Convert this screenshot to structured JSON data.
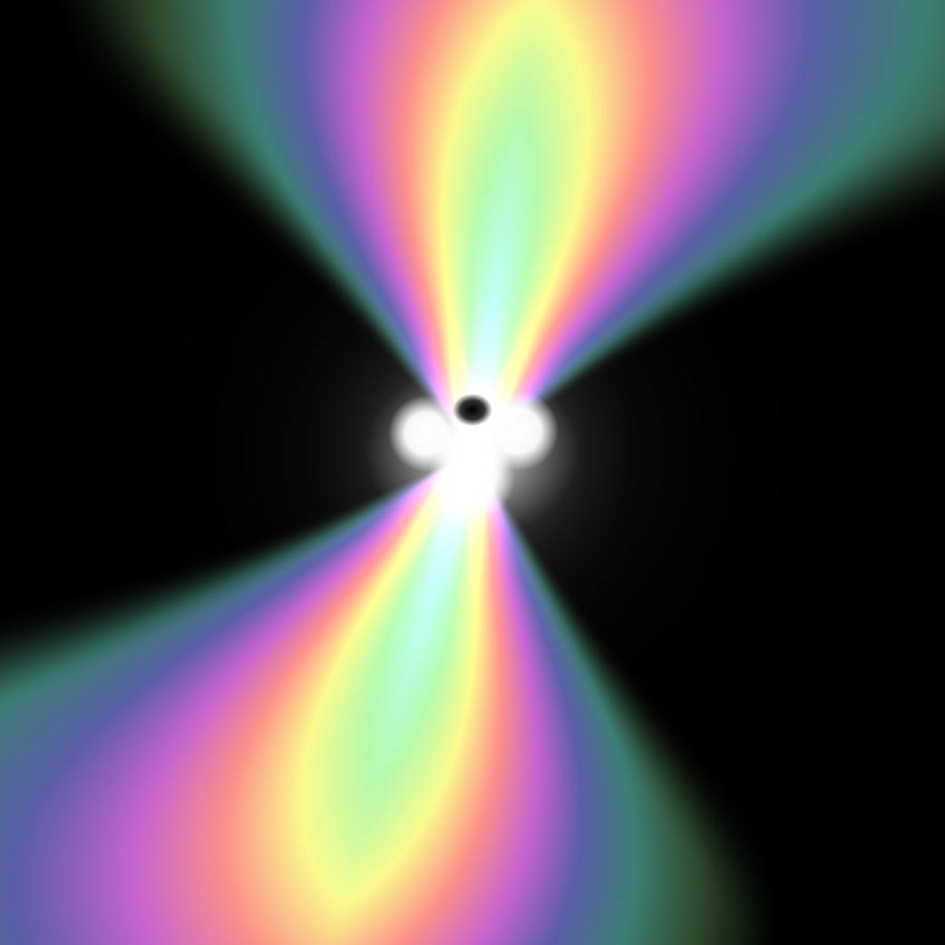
{
  "image": {
    "kind": "abstract rainbow hourglass rendering",
    "background_color": "#000000",
    "core_color": "#ffffff",
    "shadow_color": "#000000",
    "palette": [
      "#b7fbf8",
      "#b5f9ad",
      "#fafa8c",
      "#fc8f8a",
      "#c463d1",
      "#5a5ea9",
      "#3d7f75",
      "#2f4a2c",
      "#000000"
    ]
  }
}
